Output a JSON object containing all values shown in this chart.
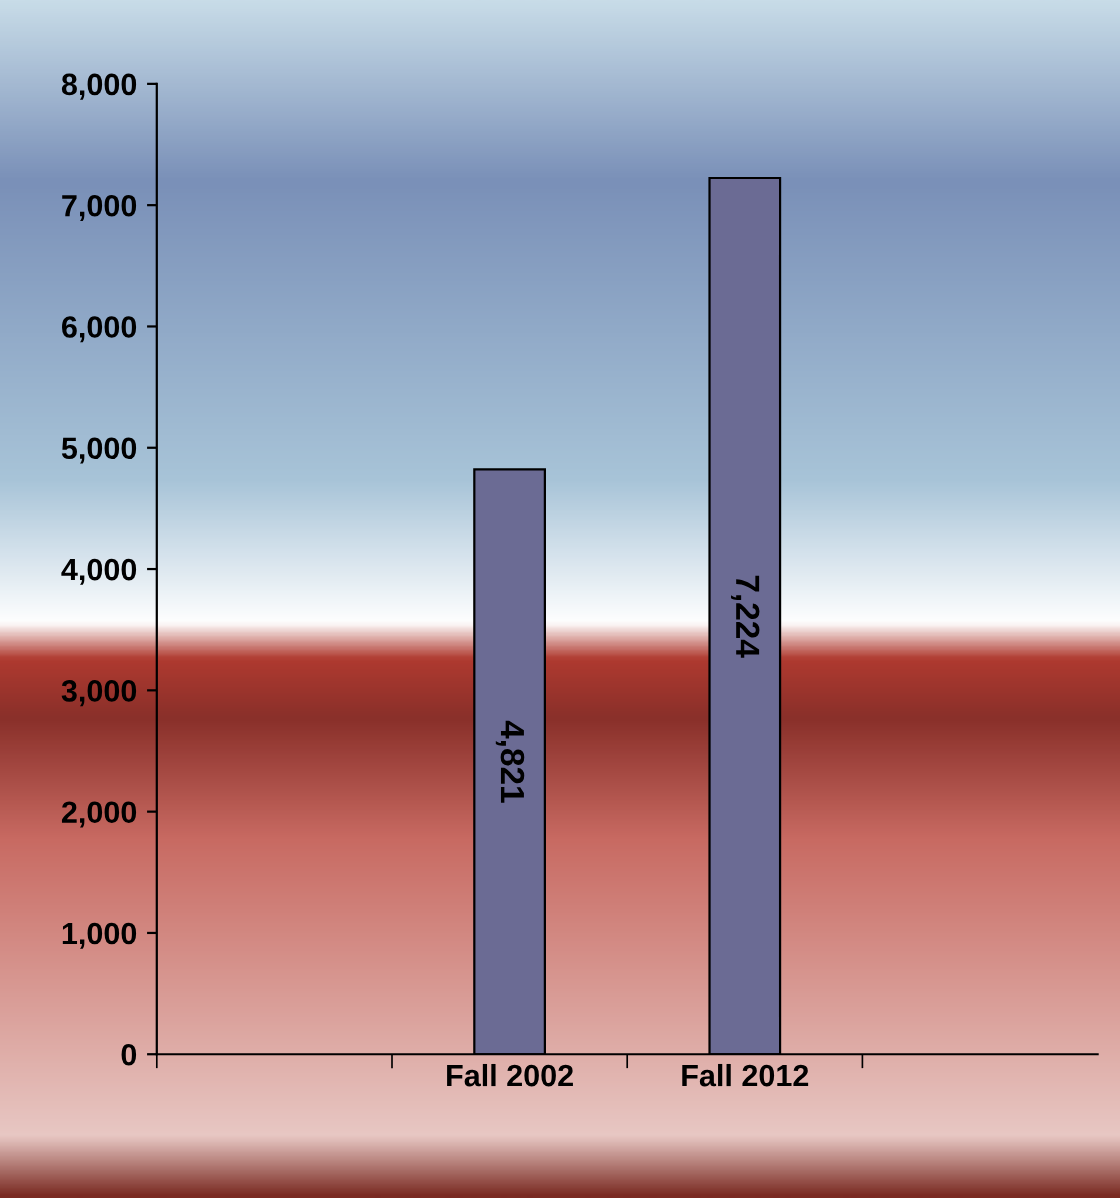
{
  "chart_data": {
    "type": "bar",
    "categories": [
      null,
      "Fall 2002",
      "Fall 2012",
      null
    ],
    "values": [
      null,
      4821,
      7224,
      null
    ],
    "value_labels": [
      null,
      "4,821",
      "7,224",
      null
    ],
    "color": "#6b6b94",
    "ylim": [
      0,
      8000
    ],
    "yticks": [
      {
        "value": 0,
        "label": "0"
      },
      {
        "value": 1000,
        "label": "1,000"
      },
      {
        "value": 2000,
        "label": "2,000"
      },
      {
        "value": 3000,
        "label": "3,000"
      },
      {
        "value": 4000,
        "label": "4,000"
      },
      {
        "value": 5000,
        "label": "5,000"
      },
      {
        "value": 6000,
        "label": "6,000"
      },
      {
        "value": 7000,
        "label": "7,000"
      },
      {
        "value": 8000,
        "label": "8,000"
      }
    ],
    "grid": false,
    "legend": false
  }
}
